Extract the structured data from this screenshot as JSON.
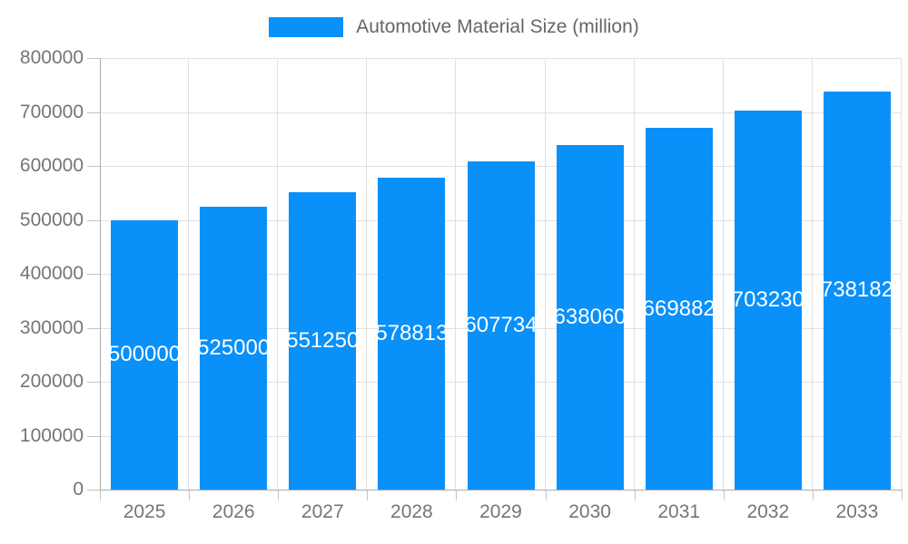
{
  "chart_data": {
    "type": "bar",
    "title": "Automotive Material Size (million)",
    "legend": {
      "label": "Automotive Material Size (million)",
      "position": "top"
    },
    "categories": [
      "2025",
      "2026",
      "2027",
      "2028",
      "2029",
      "2030",
      "2031",
      "2032",
      "2033"
    ],
    "values": [
      500000,
      525000,
      551250,
      578813,
      607734,
      638060,
      669882,
      703230,
      738182
    ],
    "value_labels": [
      "500000",
      "525000",
      "551250",
      "578813",
      "607734",
      "638060",
      "669882",
      "703230",
      "738182"
    ],
    "xlabel": "",
    "ylabel": "",
    "ylim": [
      0,
      800000
    ],
    "y_tick_step": 100000,
    "y_tick_labels": [
      "0",
      "100000",
      "200000",
      "300000",
      "400000",
      "500000",
      "600000",
      "700000",
      "800000"
    ],
    "grid": true,
    "colors": {
      "bar": "#0a90f9",
      "value_label": "#ffffff",
      "axis_text": "#757575",
      "legend_text": "#666666",
      "gridline": "#e0e0e0",
      "axis_line": "#ababab"
    }
  }
}
